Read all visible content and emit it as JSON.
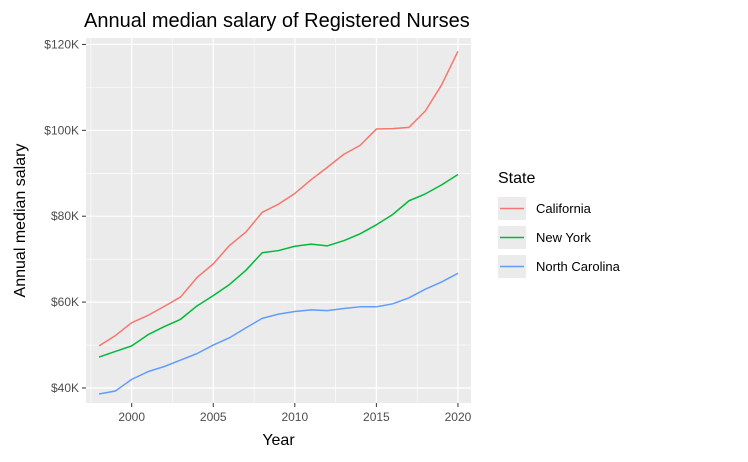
{
  "chart_data": {
    "type": "line",
    "title": "Annual median salary of Registered Nurses",
    "xlabel": "Year",
    "ylabel": "Annual median salary",
    "xlim": [
      1997.2,
      2020.8
    ],
    "ylim": [
      36500,
      121500
    ],
    "x_ticks": [
      2000,
      2005,
      2010,
      2015,
      2020
    ],
    "x_tick_labels": [
      "2000",
      "2005",
      "2010",
      "2015",
      "2020"
    ],
    "y_ticks": [
      40000,
      60000,
      80000,
      100000,
      120000
    ],
    "y_tick_labels": [
      "$40K",
      "$60K",
      "$80K",
      "$100K",
      "$120K"
    ],
    "grid": true,
    "legend_title": "State",
    "legend_position": "right",
    "x": [
      1998,
      1999,
      2000,
      2001,
      2002,
      2003,
      2004,
      2005,
      2006,
      2007,
      2008,
      2009,
      2010,
      2011,
      2012,
      2013,
      2014,
      2015,
      2016,
      2017,
      2018,
      2019,
      2020
    ],
    "series": [
      {
        "name": "California",
        "color": "#F8766D",
        "values": [
          49800,
          52200,
          55200,
          56900,
          59000,
          61200,
          65700,
          68900,
          73200,
          76300,
          80900,
          82800,
          85300,
          88500,
          91400,
          94400,
          96500,
          100300,
          100400,
          100700,
          104500,
          110600,
          118400
        ]
      },
      {
        "name": "New York",
        "color": "#00BA38",
        "values": [
          47200,
          48500,
          49800,
          52400,
          54300,
          56000,
          59100,
          61500,
          64100,
          67400,
          71500,
          72000,
          73000,
          73500,
          73100,
          74300,
          75900,
          78000,
          80400,
          83600,
          85200,
          87300,
          89700
        ]
      },
      {
        "name": "North Carolina",
        "color": "#619CFF",
        "values": [
          38600,
          39300,
          42000,
          43800,
          45000,
          46500,
          48000,
          50000,
          51700,
          54000,
          56200,
          57200,
          57800,
          58200,
          58000,
          58500,
          58900,
          58900,
          59600,
          61000,
          63000,
          64700,
          66700
        ]
      }
    ]
  }
}
